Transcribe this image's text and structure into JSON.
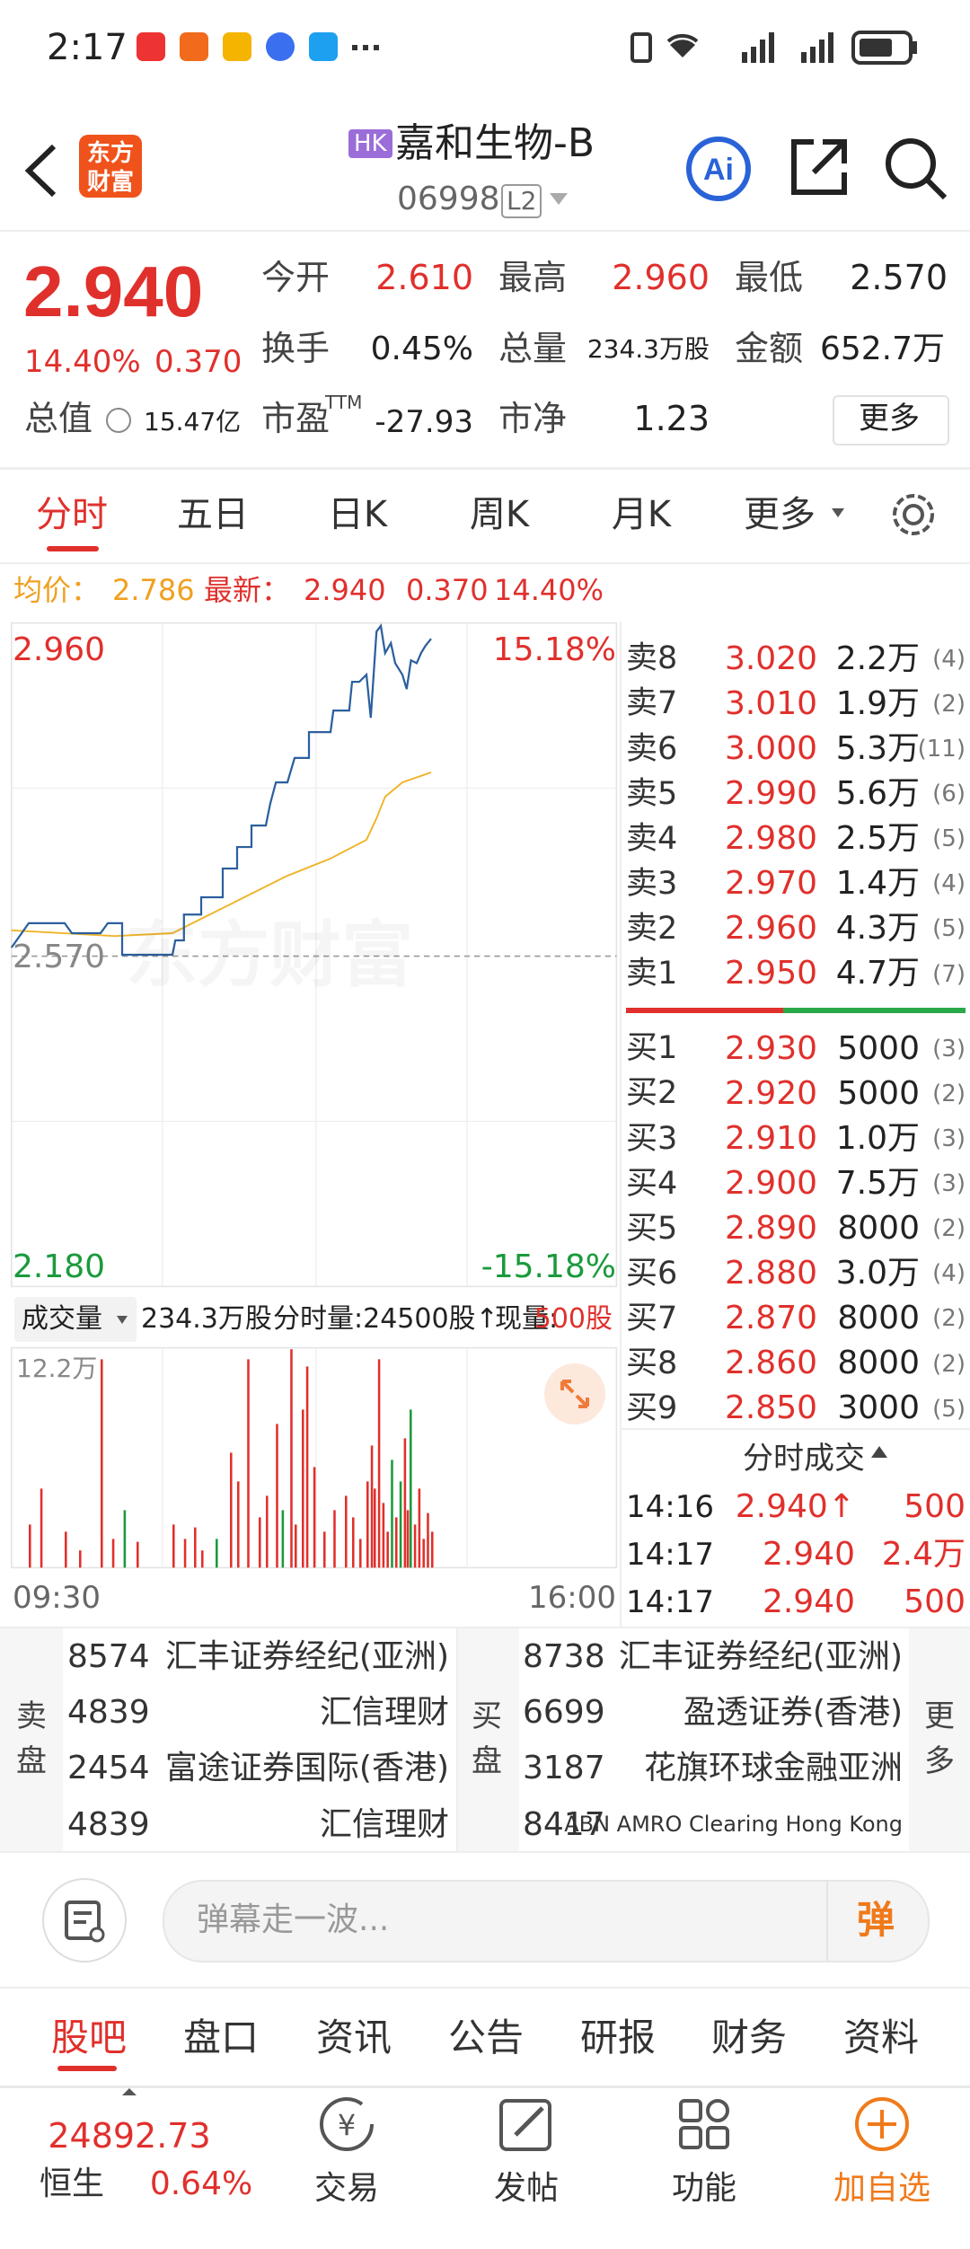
{
  "status_bar": {
    "time": "2:17"
  },
  "header": {
    "logo": "东方财富",
    "market_tag": "HK",
    "title": "嘉和生物-B",
    "code": "06998",
    "level": "L2"
  },
  "quote": {
    "price": "2.940",
    "change_pct": "14.40%",
    "change": "0.370",
    "stats": [
      {
        "label": "今开",
        "value": "2.610"
      },
      {
        "label": "最高",
        "value": "2.960"
      },
      {
        "label": "最低",
        "value": "2.570"
      },
      {
        "label": "换手",
        "value": "0.45%"
      },
      {
        "label": "总量",
        "value": "234.3万股"
      },
      {
        "label": "金额",
        "value": "652.7万"
      },
      {
        "label": "总值",
        "value": "15.47亿"
      },
      {
        "label": "市盈",
        "sup": "TTM",
        "value": "-27.93"
      },
      {
        "label": "市净",
        "value": "1.23"
      }
    ],
    "more": "更多"
  },
  "tabs": [
    "分时",
    "五日",
    "日K",
    "周K",
    "月K",
    "更多"
  ],
  "chart": {
    "avg_label": "均价：",
    "avg": "2.786",
    "latest_label": "最新：",
    "latest": "2.940",
    "change": "0.370",
    "change_pct": "14.40%",
    "high": "2.960",
    "high_pct": "15.18%",
    "mid": "2.570",
    "low": "2.180",
    "low_pct": "-15.18%",
    "watermark": "东方财富"
  },
  "volume": {
    "label": "成交量",
    "total": "234.3万股",
    "interval": "分时量:24500股↑",
    "now_label": "现量:",
    "now": "500股",
    "max": "12.2万",
    "time_start": "09:30",
    "time_end": "16:00"
  },
  "order_book": {
    "sells": [
      {
        "name": "卖8",
        "price": "3.020",
        "volume": "2.2万",
        "count": "(4)"
      },
      {
        "name": "卖7",
        "price": "3.010",
        "volume": "1.9万",
        "count": "(2)"
      },
      {
        "name": "卖6",
        "price": "3.000",
        "volume": "5.3万",
        "count": "(11)"
      },
      {
        "name": "卖5",
        "price": "2.990",
        "volume": "5.6万",
        "count": "(6)"
      },
      {
        "name": "卖4",
        "price": "2.980",
        "volume": "2.5万",
        "count": "(5)"
      },
      {
        "name": "卖3",
        "price": "2.970",
        "volume": "1.4万",
        "count": "(4)"
      },
      {
        "name": "卖2",
        "price": "2.960",
        "volume": "4.3万",
        "count": "(5)"
      },
      {
        "name": "卖1",
        "price": "2.950",
        "volume": "4.7万",
        "count": "(7)"
      }
    ],
    "buys": [
      {
        "name": "买1",
        "price": "2.930",
        "volume": "5000",
        "count": "(3)"
      },
      {
        "name": "买2",
        "price": "2.920",
        "volume": "5000",
        "count": "(2)"
      },
      {
        "name": "买3",
        "price": "2.910",
        "volume": "1.0万",
        "count": "(3)"
      },
      {
        "name": "买4",
        "price": "2.900",
        "volume": "7.5万",
        "count": "(3)"
      },
      {
        "name": "买5",
        "price": "2.890",
        "volume": "8000",
        "count": "(2)"
      },
      {
        "name": "买6",
        "price": "2.880",
        "volume": "3.0万",
        "count": "(4)"
      },
      {
        "name": "买7",
        "price": "2.870",
        "volume": "8000",
        "count": "(2)"
      },
      {
        "name": "买8",
        "price": "2.860",
        "volume": "8000",
        "count": "(2)"
      },
      {
        "name": "买9",
        "price": "2.850",
        "volume": "3000",
        "count": "(5)"
      }
    ]
  },
  "trades": {
    "title": "分时成交",
    "rows": [
      {
        "time": "14:16",
        "price": "2.940↑",
        "volume": "500"
      },
      {
        "time": "14:17",
        "price": "2.940",
        "volume": "2.4万"
      },
      {
        "time": "14:17",
        "price": "2.940",
        "volume": "500"
      }
    ]
  },
  "brokers": {
    "sell_label": "卖盘",
    "buy_label": "买盘",
    "more": "更多",
    "sells": [
      {
        "id": "8574",
        "name": "汇丰证券经纪(亚洲)"
      },
      {
        "id": "4839",
        "name": "汇信理财"
      },
      {
        "id": "2454",
        "name": "富途证券国际(香港)"
      },
      {
        "id": "4839",
        "name": "汇信理财"
      }
    ],
    "buys": [
      {
        "id": "8738",
        "name": "汇丰证券经纪(亚洲)"
      },
      {
        "id": "6699",
        "name": "盈透证券(香港)"
      },
      {
        "id": "3187",
        "name": "花旗环球金融亚洲"
      },
      {
        "id": "8417",
        "name": "ABN AMRO Clearing Hong Kong"
      }
    ]
  },
  "comment": {
    "placeholder": "弹幕走一波...",
    "button": "弹"
  },
  "bottom_tabs": [
    "股吧",
    "盘口",
    "资讯",
    "公告",
    "研报",
    "财务",
    "资料"
  ],
  "nav": {
    "index_value": "24892.73",
    "index_name": "恒生",
    "index_change": "0.64%",
    "items": [
      "交易",
      "发帖",
      "功能",
      "加自选"
    ]
  }
}
